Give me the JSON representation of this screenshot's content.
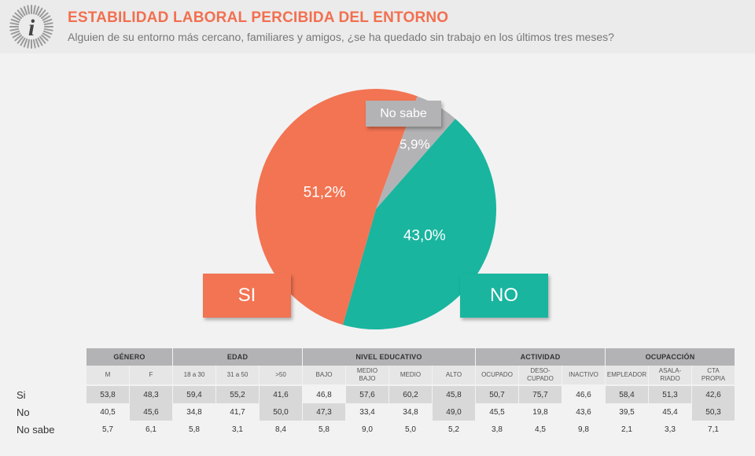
{
  "header": {
    "title": "ESTABILIDAD LABORAL PERCIBIDA DEL ENTORNO",
    "subtitle": "Alguien de su entorno más cercano, familiares y amigos, ¿se ha quedado sin trabajo en los últimos tres meses?",
    "logo_letter": "i"
  },
  "colors": {
    "si": "#f27453",
    "no": "#19b59f",
    "no_sabe": "#b3b3b5",
    "accent": "#f26f4f"
  },
  "chart_data": {
    "type": "pie",
    "slices": [
      {
        "name": "SI",
        "value": 51.2,
        "label": "51,2%",
        "color": "#f27453"
      },
      {
        "name": "NO",
        "value": 43.0,
        "label": "43,0%",
        "color": "#19b59f"
      },
      {
        "name": "No sabe",
        "value": 5.9,
        "label": "5,9%",
        "color": "#b3b3b5"
      }
    ]
  },
  "table": {
    "groups": [
      {
        "label": "GÉNERO",
        "span": 2
      },
      {
        "label": "EDAD",
        "span": 3
      },
      {
        "label": "NIVEL EDUCATIVO",
        "span": 4
      },
      {
        "label": "ACTIVIDAD",
        "span": 3
      },
      {
        "label": "OCUPACCIÓN",
        "span": 3
      }
    ],
    "subheaders": [
      "M",
      "F",
      "18 a 30",
      "31 a 50",
      ">50",
      "BAJO",
      "MEDIO\nBAJO",
      "MEDIO",
      "ALTO",
      "OCUPADO",
      "DESO-\nCUPADO",
      "INACTIVO",
      "EMPLEADOR",
      "ASALA-\nRIADO",
      "CTA\nPROPIA"
    ],
    "rows": [
      {
        "label": "Si",
        "values": [
          "53,8",
          "48,3",
          "59,4",
          "55,2",
          "41,6",
          "46,8",
          "57,6",
          "60,2",
          "45,8",
          "50,7",
          "75,7",
          "46,6",
          "58,4",
          "51,3",
          "42,6"
        ],
        "highlight": [
          0,
          1,
          2,
          3,
          4,
          6,
          7,
          8,
          9,
          10,
          12,
          13,
          14
        ]
      },
      {
        "label": "No",
        "values": [
          "40,5",
          "45,6",
          "34,8",
          "41,7",
          "50,0",
          "47,3",
          "33,4",
          "34,8",
          "49,0",
          "45,5",
          "19,8",
          "43,6",
          "39,5",
          "45,4",
          "50,3"
        ],
        "highlight": [
          1,
          4,
          5,
          8,
          14
        ]
      },
      {
        "label": "No sabe",
        "values": [
          "5,7",
          "6,1",
          "5,8",
          "3,1",
          "8,4",
          "5,8",
          "9,0",
          "5,0",
          "5,2",
          "3,8",
          "4,5",
          "9,8",
          "2,1",
          "3,3",
          "7,1"
        ],
        "highlight": []
      }
    ]
  }
}
